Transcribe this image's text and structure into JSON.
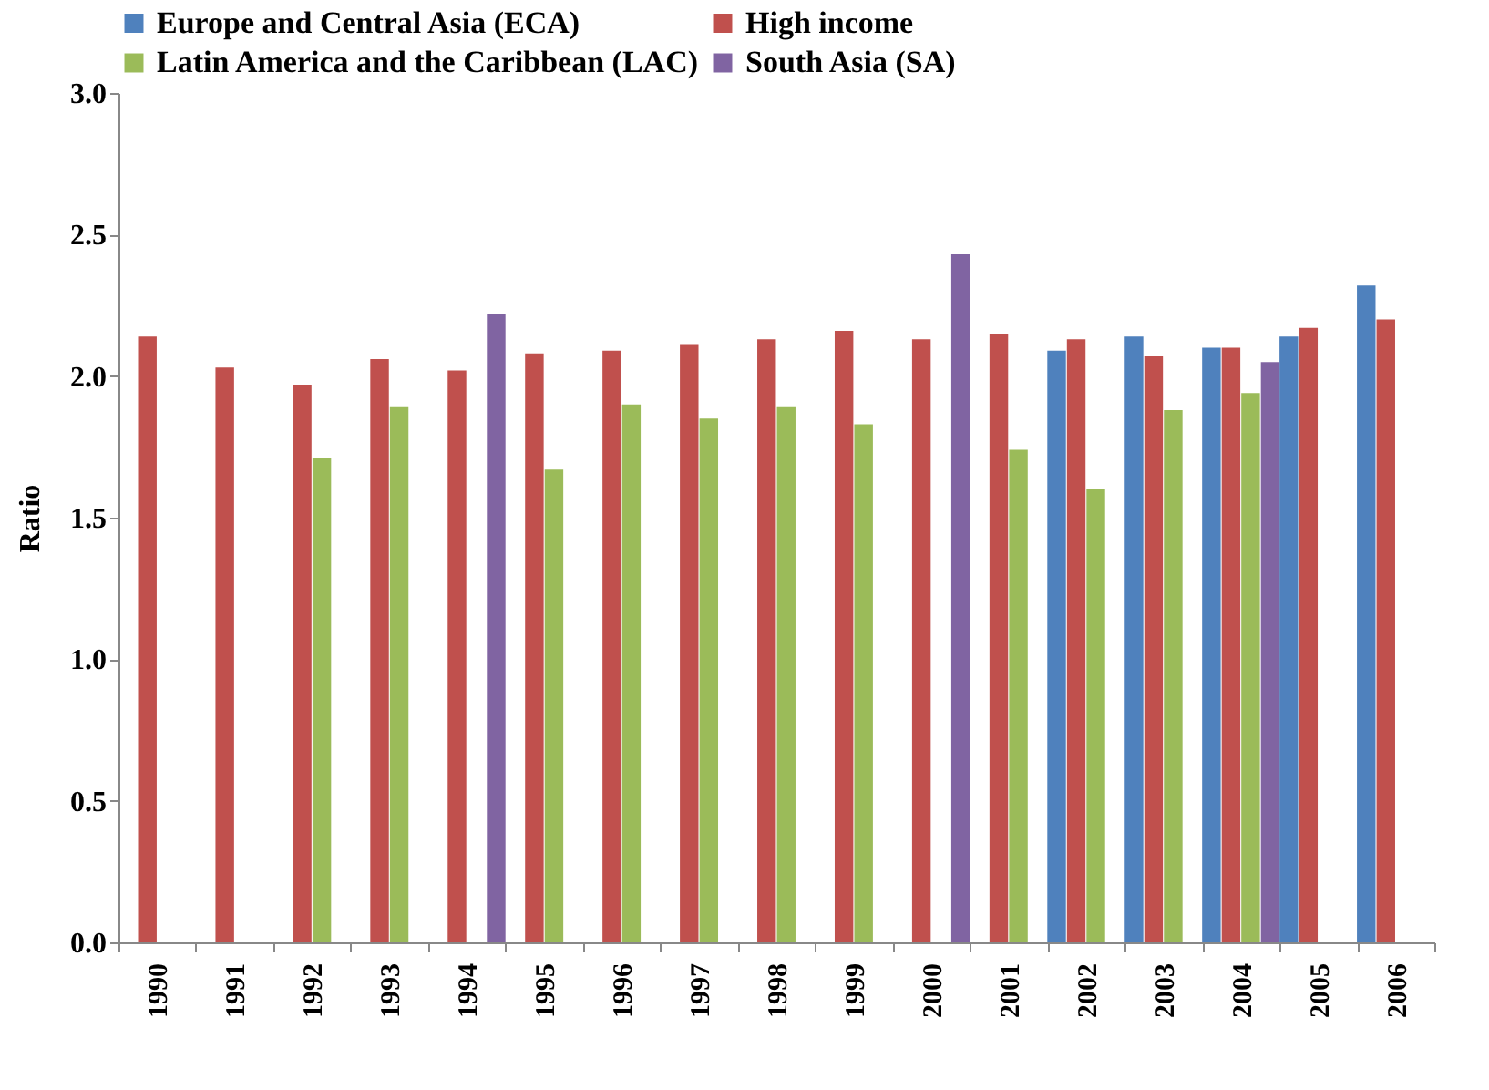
{
  "chart_data": {
    "type": "bar",
    "ylabel": "Ratio",
    "ylim": [
      0,
      3
    ],
    "yticks": [
      {
        "value": 0,
        "label": "0.0"
      },
      {
        "value": 0.5,
        "label": "0.5"
      },
      {
        "value": 1,
        "label": "1.0"
      },
      {
        "value": 1.5,
        "label": "1.5"
      },
      {
        "value": 2,
        "label": "2.0"
      },
      {
        "value": 2.5,
        "label": "2.5"
      },
      {
        "value": 3,
        "label": "3.0"
      }
    ],
    "grid": false,
    "legend": "top",
    "categories": [
      "1990",
      "1991",
      "1992",
      "1993",
      "1994",
      "1995",
      "1996",
      "1997",
      "1998",
      "1999",
      "2000",
      "2001",
      "2002",
      "2003",
      "2004",
      "2005",
      "2006"
    ],
    "series": [
      {
        "name": "Europe and Central Asia (ECA)",
        "color": "#4f81bd",
        "values": [
          null,
          null,
          null,
          null,
          null,
          null,
          null,
          null,
          null,
          null,
          null,
          null,
          2.09,
          2.14,
          2.1,
          2.14,
          2.32
        ]
      },
      {
        "name": "High income",
        "color": "#c0504d",
        "values": [
          2.14,
          2.03,
          1.97,
          2.06,
          2.02,
          2.08,
          2.09,
          2.11,
          2.13,
          2.16,
          2.13,
          2.15,
          2.13,
          2.07,
          2.1,
          2.17,
          2.2
        ]
      },
      {
        "name": "Latin America and the Caribbean (LAC)",
        "color": "#9bbb59",
        "values": [
          null,
          null,
          1.71,
          1.89,
          null,
          1.67,
          1.9,
          1.85,
          1.89,
          1.83,
          null,
          1.74,
          1.6,
          1.88,
          1.94,
          null,
          null
        ]
      },
      {
        "name": "South Asia (SA)",
        "color": "#8064a2",
        "values": [
          null,
          null,
          null,
          null,
          2.22,
          null,
          null,
          null,
          null,
          null,
          2.43,
          null,
          null,
          null,
          2.05,
          null,
          null
        ]
      }
    ]
  }
}
